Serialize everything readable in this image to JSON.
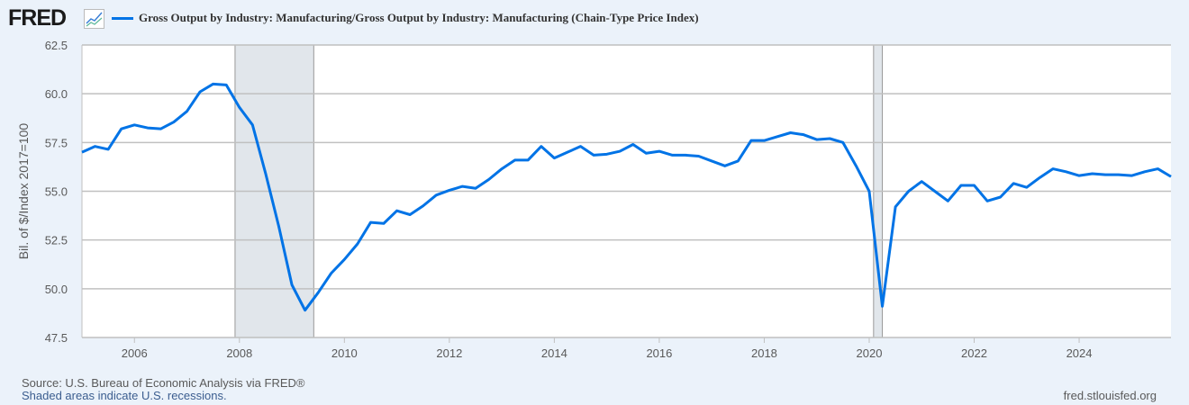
{
  "header": {
    "logo": "FRED",
    "logo_icon": "line-chart-icon"
  },
  "chart_data": {
    "type": "line",
    "title": "",
    "ylabel": "Bil. of $/Index 2017=100",
    "xlabel": "",
    "ylim": [
      47.5,
      62.5
    ],
    "xlim": [
      2005.0,
      2025.75
    ],
    "yticks": [
      "47.5",
      "50.0",
      "52.5",
      "55.0",
      "57.5",
      "60.0",
      "62.5"
    ],
    "xticks": [
      "2006",
      "2008",
      "2010",
      "2012",
      "2014",
      "2016",
      "2018",
      "2020",
      "2022",
      "2024"
    ],
    "grid": true,
    "legend_placement": "top",
    "color": "#0073e6",
    "recession_color": "#e1e6eb",
    "recessions": [
      [
        "2007-12",
        "2009-06"
      ],
      [
        "2020-02",
        "2020-04"
      ]
    ],
    "frequency": "quarterly",
    "start": "2005-Q1",
    "series": [
      {
        "name": "Gross Output by Industry: Manufacturing/Gross Output by Industry: Manufacturing (Chain-Type Price Index)",
        "values": [
          57.0,
          57.3,
          57.15,
          58.2,
          58.4,
          58.25,
          58.2,
          58.55,
          59.1,
          60.1,
          60.5,
          60.45,
          59.3,
          58.4,
          55.9,
          53.2,
          50.2,
          48.9,
          49.8,
          50.8,
          51.5,
          52.3,
          53.4,
          53.35,
          54.0,
          53.8,
          54.25,
          54.8,
          55.05,
          55.25,
          55.15,
          55.6,
          56.15,
          56.6,
          56.6,
          57.3,
          56.7,
          57.0,
          57.3,
          56.85,
          56.9,
          57.05,
          57.4,
          56.95,
          57.05,
          56.85,
          56.85,
          56.8,
          56.55,
          56.3,
          56.55,
          57.6,
          57.6,
          57.8,
          58.0,
          57.9,
          57.65,
          57.7,
          57.5,
          56.3,
          55.0,
          49.1,
          54.2,
          55.0,
          55.5,
          55.0,
          54.5,
          55.3,
          55.3,
          54.5,
          54.7,
          55.4,
          55.2,
          55.7,
          56.15,
          56.0,
          55.8,
          55.9,
          55.85,
          55.85,
          55.8,
          56.0,
          56.15,
          55.75
        ]
      }
    ]
  },
  "footer": {
    "source": "Source: U.S. Bureau of Economic Analysis via FRED®",
    "shaded": "Shaded areas indicate U.S. recessions.",
    "site": "fred.stlouisfed.org"
  }
}
